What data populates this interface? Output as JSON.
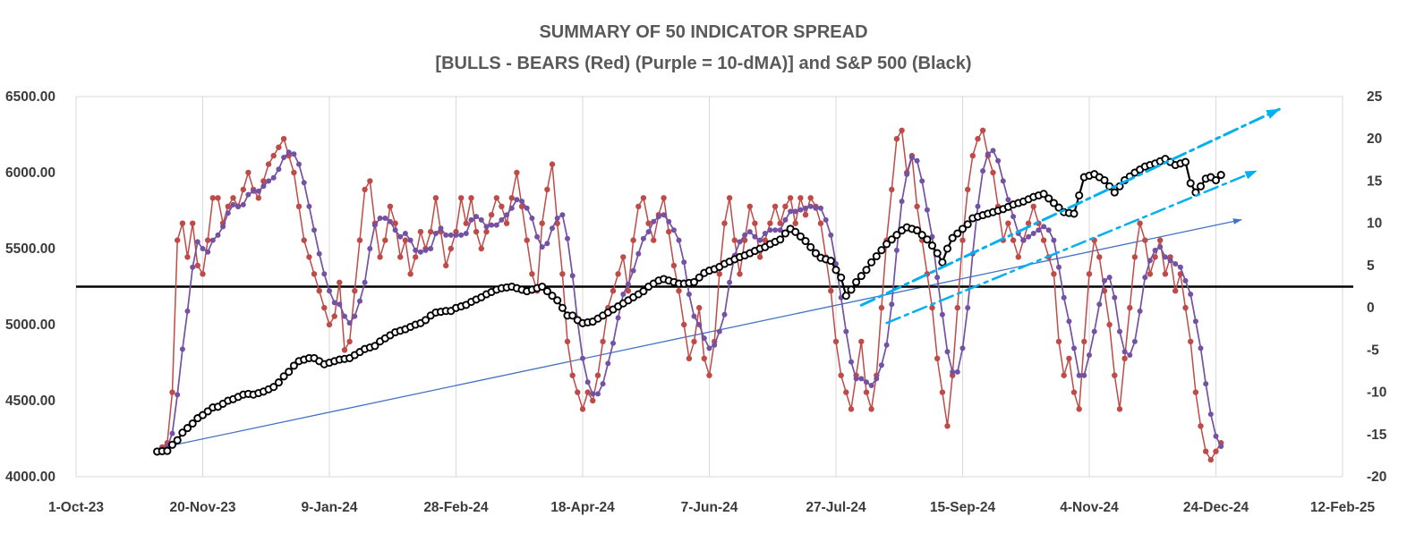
{
  "chart_data": {
    "type": "line",
    "title": "SUMMARY OF 50 INDICATOR SPREAD",
    "subtitle": "[BULLS - BEARS (Red) (Purple = 10-dMA)] and S&P 500 (Black)",
    "x_axis": {
      "unit": "days since 1-Oct-23",
      "range": [
        0,
        500
      ],
      "tick_days": [
        0,
        50,
        100,
        150,
        200,
        250,
        300,
        350,
        400,
        450,
        500
      ],
      "tick_labels": [
        "1-Oct-23",
        "20-Nov-23",
        "9-Jan-24",
        "28-Feb-24",
        "18-Apr-24",
        "7-Jun-24",
        "27-Jul-24",
        "15-Sep-24",
        "4-Nov-24",
        "24-Dec-24",
        "12-Feb-25"
      ]
    },
    "left_axis": {
      "title": "S&P 500",
      "min": 4000,
      "max": 6500,
      "tick_step": 500,
      "tick_labels": [
        "6500.00",
        "6000.00",
        "5500.00",
        "5000.00",
        "4500.00",
        "4000.00"
      ]
    },
    "right_axis": {
      "title": "Bulls - Bears indicator spread",
      "min": -20,
      "max": 25,
      "tick_step": 5,
      "tick_labels": [
        "25",
        "20",
        "15",
        "10",
        "5",
        "0",
        "-5",
        "-10",
        "-15",
        "-20"
      ]
    },
    "points": {
      "start_day": 32,
      "day_step": 2
    },
    "series": [
      {
        "id": "spread",
        "name": "BULLS - BEARS (Red)",
        "axis": "right",
        "color": "#BE4B48",
        "marker": "filled-circle",
        "values": [
          -17,
          -16.5,
          -16,
          -10,
          8,
          10,
          6,
          10,
          5,
          4,
          8,
          13,
          13,
          10,
          12,
          13,
          12,
          14,
          16,
          14,
          13,
          15,
          17,
          18,
          19,
          20,
          18,
          16,
          12,
          8,
          6,
          4,
          2,
          0,
          -2,
          -1,
          3,
          -5,
          -4,
          2,
          8,
          14,
          15,
          10,
          6,
          8,
          12,
          10,
          6,
          8,
          4,
          6,
          9,
          7,
          9,
          13,
          9,
          5,
          7,
          9,
          13,
          10,
          13,
          9,
          7,
          9,
          11,
          13,
          12,
          10,
          13,
          16,
          12,
          8,
          4,
          2,
          10,
          14,
          17,
          10,
          4,
          -4,
          -8,
          -10,
          -12,
          -10,
          -11,
          -8,
          -4,
          0,
          2,
          4,
          6,
          2,
          8,
          12,
          13,
          10,
          8,
          11,
          13,
          9,
          5,
          2,
          -2,
          -6,
          -4,
          0,
          -6,
          -8,
          -4,
          4,
          10,
          13,
          8,
          4,
          8,
          12,
          10,
          6,
          8,
          10,
          12,
          10,
          12,
          13,
          10,
          13,
          11,
          13,
          12,
          10,
          6,
          2,
          -4,
          -8,
          -10,
          -12,
          -8,
          -4,
          -10,
          -12,
          -8,
          0,
          8,
          14,
          20,
          21,
          16,
          18,
          12,
          8,
          4,
          0,
          -6,
          -10,
          -14,
          -8,
          0,
          8,
          14,
          18,
          20,
          21,
          18,
          16,
          12,
          8,
          10,
          8,
          6,
          8,
          10,
          12,
          10,
          8,
          6,
          4,
          -4,
          -8,
          -6,
          -10,
          -12,
          -4,
          4,
          8,
          6,
          2,
          -2,
          -8,
          -12,
          -6,
          0,
          6,
          10,
          8,
          4,
          6,
          8,
          4,
          6,
          2,
          4,
          0,
          -4,
          -10,
          -14,
          -17,
          -18,
          -17,
          -16
        ]
      },
      {
        "id": "spread_10dma",
        "name": "Purple = 10-dMA",
        "axis": "right",
        "color": "#7351A3",
        "marker": "filled-circle",
        "derived_from": "spread",
        "method": "trailing-mean",
        "window_points": 5
      },
      {
        "id": "sp500",
        "name": "S&P 500 (Black)",
        "axis": "left",
        "color": "#000000",
        "marker": "open-circle",
        "values": [
          4165,
          4168,
          4170,
          4210,
          4240,
          4290,
          4320,
          4350,
          4385,
          4405,
          4430,
          4455,
          4460,
          4480,
          4500,
          4510,
          4525,
          4540,
          4545,
          4540,
          4550,
          4560,
          4575,
          4590,
          4620,
          4660,
          4690,
          4730,
          4760,
          4770,
          4780,
          4780,
          4760,
          4740,
          4750,
          4760,
          4770,
          4775,
          4780,
          4800,
          4820,
          4840,
          4850,
          4860,
          4890,
          4910,
          4930,
          4950,
          4960,
          4970,
          4985,
          5000,
          5010,
          5030,
          5060,
          5080,
          5085,
          5090,
          5090,
          5110,
          5120,
          5130,
          5150,
          5165,
          5180,
          5200,
          5215,
          5230,
          5240,
          5245,
          5250,
          5240,
          5230,
          5220,
          5230,
          5240,
          5250,
          5220,
          5190,
          5160,
          5110,
          5060,
          5060,
          5030,
          5010,
          5015,
          5020,
          5040,
          5060,
          5080,
          5100,
          5120,
          5140,
          5160,
          5180,
          5200,
          5220,
          5250,
          5270,
          5290,
          5300,
          5290,
          5280,
          5270,
          5270,
          5275,
          5280,
          5310,
          5340,
          5355,
          5365,
          5380,
          5400,
          5415,
          5430,
          5445,
          5455,
          5470,
          5485,
          5500,
          5510,
          5530,
          5545,
          5560,
          5600,
          5630,
          5610,
          5580,
          5550,
          5510,
          5470,
          5440,
          5430,
          5420,
          5360,
          5310,
          5190,
          5230,
          5280,
          5320,
          5360,
          5410,
          5450,
          5490,
          5530,
          5560,
          5590,
          5620,
          5640,
          5630,
          5620,
          5590,
          5560,
          5520,
          5470,
          5410,
          5500,
          5570,
          5600,
          5630,
          5660,
          5700,
          5710,
          5720,
          5730,
          5740,
          5750,
          5760,
          5775,
          5790,
          5800,
          5810,
          5825,
          5840,
          5850,
          5860,
          5830,
          5800,
          5770,
          5740,
          5735,
          5730,
          5850,
          5970,
          5980,
          5990,
          5970,
          5950,
          5910,
          5870,
          5910,
          5950,
          5975,
          6000,
          6020,
          6040,
          6050,
          6060,
          6075,
          6090,
          6070,
          6050,
          6060,
          6070,
          5930,
          5870,
          5910,
          5960,
          5970,
          5950,
          5985
        ]
      }
    ],
    "reference_line": {
      "axis": "right",
      "value": 2.5,
      "color": "#000000",
      "width": 2.6
    },
    "trend_lines": [
      {
        "id": "sp500-trendline",
        "axis": "left",
        "from": [
          32,
          4185
        ],
        "to": [
          460,
          5690
        ],
        "style": "solid",
        "color": "#4472C4",
        "width": 1.3,
        "arrow": true
      },
      {
        "id": "upper-channel-arrow",
        "axis": "right",
        "from": [
          310,
          0.3
        ],
        "to": [
          475,
          23.5
        ],
        "style": "dash-dot",
        "color": "#00B0F0",
        "width": 3,
        "arrow": true
      },
      {
        "id": "lower-channel-arrow",
        "axis": "right",
        "from": [
          320,
          -1.8
        ],
        "to": [
          466,
          16.2
        ],
        "style": "dash-dot",
        "color": "#00B0F0",
        "width": 2.5,
        "arrow": true
      }
    ],
    "gridlines": {
      "vertical": true,
      "horizontal": false,
      "color": "#D9D9D9"
    }
  }
}
